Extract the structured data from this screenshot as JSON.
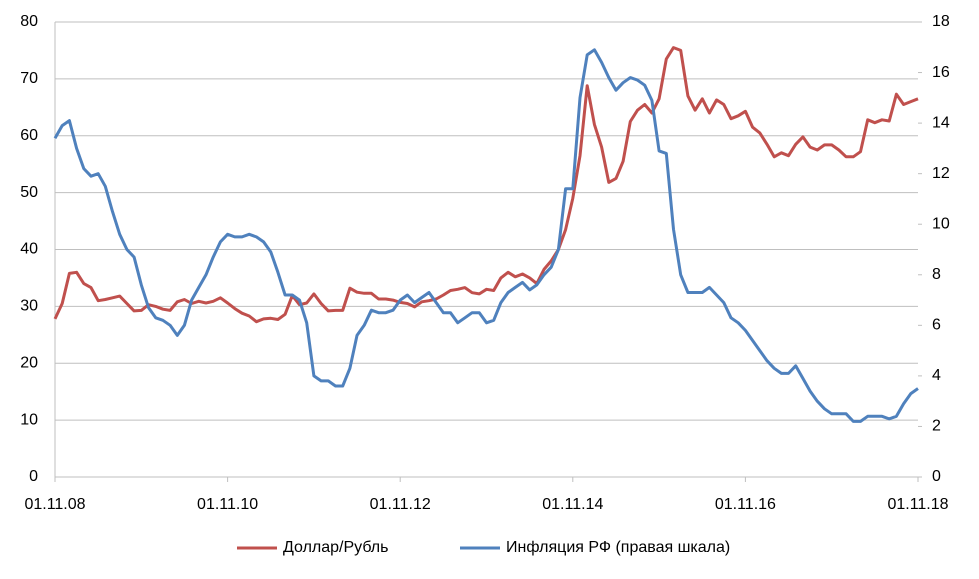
{
  "chart_data": {
    "type": "line",
    "x": [
      "01.11.08",
      "01.12.08",
      "01.01.09",
      "01.02.09",
      "01.03.09",
      "01.04.09",
      "01.05.09",
      "01.06.09",
      "01.07.09",
      "01.08.09",
      "01.09.09",
      "01.10.09",
      "01.11.09",
      "01.12.09",
      "01.01.10",
      "01.02.10",
      "01.03.10",
      "01.04.10",
      "01.05.10",
      "01.06.10",
      "01.07.10",
      "01.08.10",
      "01.09.10",
      "01.10.10",
      "01.11.10",
      "01.12.10",
      "01.01.11",
      "01.02.11",
      "01.03.11",
      "01.04.11",
      "01.05.11",
      "01.06.11",
      "01.07.11",
      "01.08.11",
      "01.09.11",
      "01.10.11",
      "01.11.11",
      "01.12.11",
      "01.01.12",
      "01.02.12",
      "01.03.12",
      "01.04.12",
      "01.05.12",
      "01.06.12",
      "01.07.12",
      "01.08.12",
      "01.09.12",
      "01.10.12",
      "01.11.12",
      "01.12.12",
      "01.01.13",
      "01.02.13",
      "01.03.13",
      "01.04.13",
      "01.05.13",
      "01.06.13",
      "01.07.13",
      "01.08.13",
      "01.09.13",
      "01.10.13",
      "01.11.13",
      "01.12.13",
      "01.01.14",
      "01.02.14",
      "01.03.14",
      "01.04.14",
      "01.05.14",
      "01.06.14",
      "01.07.14",
      "01.08.14",
      "01.09.14",
      "01.10.14",
      "01.11.14",
      "01.12.14",
      "01.01.15",
      "01.02.15",
      "01.03.15",
      "01.04.15",
      "01.05.15",
      "01.06.15",
      "01.07.15",
      "01.08.15",
      "01.09.15",
      "01.10.15",
      "01.11.15",
      "01.12.15",
      "01.01.16",
      "01.02.16",
      "01.03.16",
      "01.04.16",
      "01.05.16",
      "01.06.16",
      "01.07.16",
      "01.08.16",
      "01.09.16",
      "01.10.16",
      "01.11.16",
      "01.12.16",
      "01.01.17",
      "01.02.17",
      "01.03.17",
      "01.04.17",
      "01.05.17",
      "01.06.17",
      "01.07.17",
      "01.08.17",
      "01.09.17",
      "01.10.17",
      "01.11.17",
      "01.12.17",
      "01.01.18",
      "01.02.18",
      "01.03.18",
      "01.04.18",
      "01.05.18",
      "01.06.18",
      "01.07.18",
      "01.08.18",
      "01.09.18",
      "01.10.18",
      "01.11.18"
    ],
    "series": [
      {
        "name": "Доллар/Рубль",
        "color": "#c0504d",
        "axis": "y",
        "values": [
          27.8,
          30.5,
          35.8,
          36,
          34,
          33.3,
          31,
          31.2,
          31.5,
          31.8,
          30.5,
          29.2,
          29.3,
          30.3,
          30,
          29.5,
          29.3,
          30.8,
          31.2,
          30.5,
          30.9,
          30.6,
          30.9,
          31.5,
          30.6,
          29.6,
          28.8,
          28.3,
          27.3,
          27.8,
          27.9,
          27.7,
          28.6,
          31.9,
          30.3,
          30.6,
          32.2,
          30.5,
          29.2,
          29.3,
          29.3,
          33.2,
          32.5,
          32.3,
          32.3,
          31.3,
          31.3,
          31.1,
          30.7,
          30.5,
          29.9,
          30.8,
          31,
          31.3,
          32,
          32.8,
          33,
          33.3,
          32.4,
          32.2,
          33,
          32.8,
          35,
          36,
          35.2,
          35.7,
          35,
          34,
          36.5,
          38,
          40,
          43.5,
          49,
          56.5,
          68.8,
          62,
          58,
          51.8,
          52.5,
          55.5,
          62.5,
          64.5,
          65.5,
          64,
          66.5,
          73.5,
          75.5,
          75,
          67,
          64.5,
          66.5,
          64,
          66.3,
          65.5,
          63,
          63.5,
          64.3,
          61.5,
          60.5,
          58.5,
          56.3,
          57,
          56.5,
          58.5,
          59.8,
          58,
          57.5,
          58.4,
          58.4,
          57.5,
          56.3,
          56.3,
          57.2,
          62.8,
          62.3,
          62.8,
          62.6,
          67.3,
          65.5,
          66,
          66.5
        ]
      },
      {
        "name": "Инфляция РФ (правая шкала)",
        "color": "#4f81bd",
        "axis": "y2",
        "values": [
          13.4,
          13.9,
          14.1,
          13,
          12.2,
          11.9,
          12,
          11.5,
          10.5,
          9.6,
          9,
          8.7,
          7.6,
          6.7,
          6.3,
          6.2,
          6,
          5.6,
          6,
          7,
          7.5,
          8,
          8.7,
          9.3,
          9.6,
          9.5,
          9.5,
          9.6,
          9.5,
          9.3,
          8.9,
          8.1,
          7.2,
          7.2,
          7,
          6.1,
          4,
          3.8,
          3.8,
          3.6,
          3.6,
          4.3,
          5.6,
          6,
          6.6,
          6.5,
          6.5,
          6.6,
          7,
          7.2,
          6.9,
          7.1,
          7.3,
          6.9,
          6.5,
          6.5,
          6.1,
          6.3,
          6.5,
          6.5,
          6.1,
          6.2,
          6.9,
          7.3,
          7.5,
          7.7,
          7.4,
          7.6,
          8,
          8.3,
          9,
          11.4,
          11.4,
          15,
          16.7,
          16.9,
          16.4,
          15.8,
          15.3,
          15.6,
          15.8,
          15.7,
          15.5,
          14.9,
          12.9,
          12.8,
          9.8,
          8,
          7.3,
          7.3,
          7.3,
          7.5,
          7.2,
          6.9,
          6.3,
          6.1,
          5.8,
          5.4,
          5,
          4.6,
          4.3,
          4.1,
          4.1,
          4.4,
          3.9,
          3.4,
          3,
          2.7,
          2.5,
          2.5,
          2.5,
          2.2,
          2.2,
          2.4,
          2.4,
          2.4,
          2.3,
          2.4,
          2.9,
          3.3,
          3.5
        ]
      }
    ],
    "xlim": [
      "01.11.08",
      "01.11.18"
    ],
    "xticks": [
      "01.11.08",
      "01.11.10",
      "01.11.12",
      "01.11.14",
      "01.11.16",
      "01.11.18"
    ],
    "ylim": [
      0,
      80
    ],
    "yticks": [
      0,
      10,
      20,
      30,
      40,
      50,
      60,
      70,
      80
    ],
    "y2lim": [
      0,
      18
    ],
    "y2ticks": [
      0,
      2,
      4,
      6,
      8,
      10,
      12,
      14,
      16,
      18
    ],
    "grid": true,
    "legend": "bottom"
  }
}
